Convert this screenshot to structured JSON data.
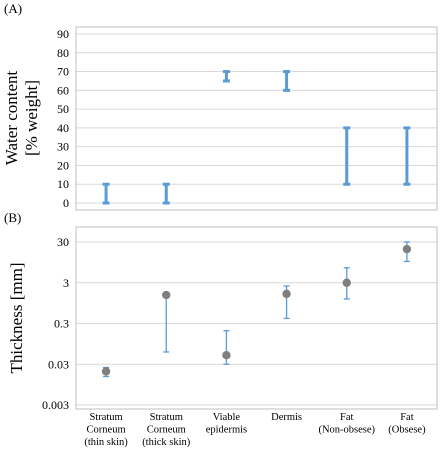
{
  "figure": {
    "panel_a_label": "(A)",
    "panel_b_label": "(B)"
  },
  "chart_data": [
    {
      "type": "range",
      "panel": "(A)",
      "ylabel_lines": [
        "Water content",
        "[% weight]"
      ],
      "ylim": [
        0,
        90
      ],
      "yticks": [
        0,
        10,
        20,
        30,
        40,
        50,
        60,
        70,
        80,
        90
      ],
      "yticklabels": [
        "0",
        "10",
        "20",
        "30",
        "40",
        "50",
        "60",
        "70",
        "80",
        "90"
      ],
      "grid": true,
      "color": "#5b9bd5",
      "ranges": [
        {
          "low": 0,
          "high": 10
        },
        {
          "low": 0,
          "high": 10
        },
        {
          "low": 65,
          "high": 70
        },
        {
          "low": 60,
          "high": 70
        },
        {
          "low": 10,
          "high": 40
        },
        {
          "low": 10,
          "high": 40
        }
      ]
    },
    {
      "type": "scatter",
      "panel": "(B)",
      "ylabel": "Thickness [mm]",
      "yscale": "log",
      "ylim": [
        0.003,
        40
      ],
      "yticks": [
        0.003,
        0.03,
        0.3,
        3,
        30
      ],
      "yticklabels": [
        "0.003",
        "0.03",
        "0.3",
        "3",
        "30"
      ],
      "grid": true,
      "point_color": "#7f7f7f",
      "errorbar_color": "#5b9bd5",
      "categories": [
        [
          "Stratum",
          "Corneum",
          "(thin skin)"
        ],
        [
          "Stratum",
          "Corneum",
          "(thick skin)"
        ],
        [
          "Viable",
          "epidermis"
        ],
        [
          "Dermis"
        ],
        [
          "Fat",
          "(Non-obsese)"
        ],
        [
          "Fat",
          "(Obsese)"
        ]
      ],
      "points": [
        {
          "value": 0.02,
          "low": 0.015,
          "high": 0.025
        },
        {
          "value": 1.5,
          "low": 0.06,
          "high": 1.7
        },
        {
          "value": 0.05,
          "low": 0.03,
          "high": 0.2
        },
        {
          "value": 1.6,
          "low": 0.4,
          "high": 2.5
        },
        {
          "value": 3,
          "low": 1.2,
          "high": 7
        },
        {
          "value": 20,
          "low": 10,
          "high": 30
        }
      ]
    }
  ]
}
